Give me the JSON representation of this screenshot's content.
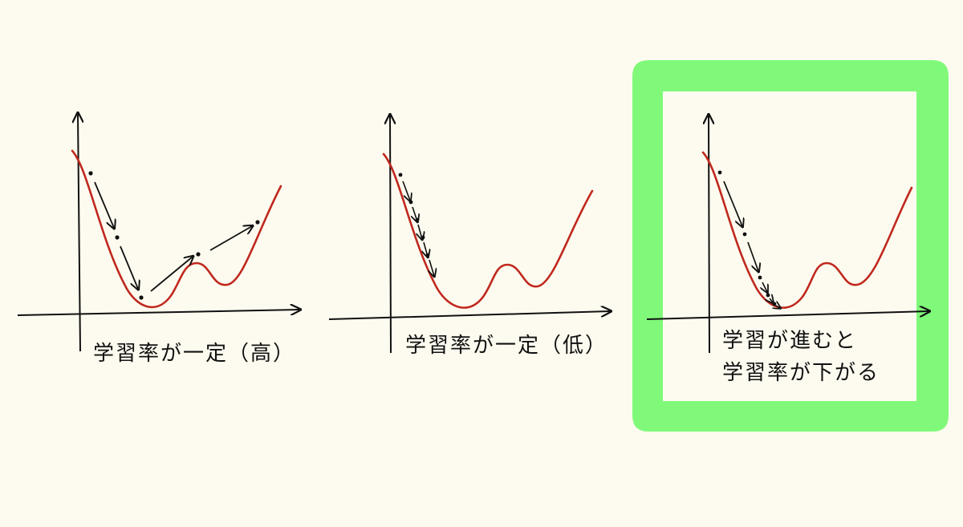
{
  "colors": {
    "background": "#fdfbef",
    "curve": "#c0281e",
    "ink": "#111111",
    "highlight": "#80f97a"
  },
  "panels": [
    {
      "caption": "学習率が一定（高）",
      "highlighted": false
    },
    {
      "caption": "学習率が一定（低）",
      "highlighted": false
    },
    {
      "caption_lines": [
        "学習が進むと",
        "学習率が下がる"
      ],
      "highlighted": true
    }
  ]
}
